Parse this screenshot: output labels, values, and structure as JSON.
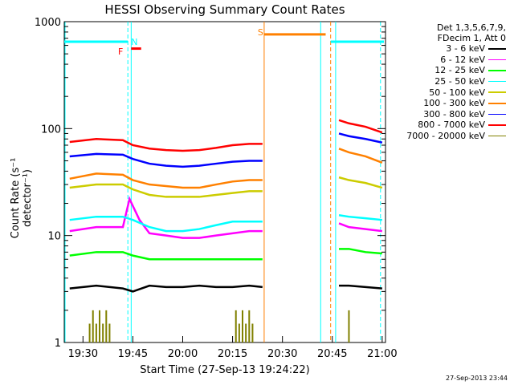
{
  "chart_data": {
    "type": "line",
    "title": "HESSI Observing Summary Count Rates",
    "xlabel": "Start Time (27-Sep-13 19:24:22)",
    "ylabel": "Count Rate (s⁻¹ detector⁻¹)",
    "yscale": "log",
    "ylim": [
      1,
      1000
    ],
    "xlim": [
      "19:24:22",
      "21:01:00"
    ],
    "x_ticks": [
      "19:30",
      "19:45",
      "20:00",
      "20:15",
      "20:30",
      "20:45",
      "21:00"
    ],
    "y_ticks": [
      "1",
      "10",
      "100",
      "1000"
    ],
    "timestamp": "27-Sep-2013 23:44",
    "legend_header": [
      "Det 1,3,5,6,7,9,",
      "FDecim 1, Att 0"
    ],
    "legend_position": "right",
    "series": [
      {
        "name": "3 - 6 keV",
        "color": "#000000",
        "x": [
          "19:26",
          "19:34",
          "19:42",
          "19:45",
          "19:50",
          "19:55",
          "20:00",
          "20:05",
          "20:10",
          "20:15",
          "20:20",
          "20:24",
          "20:47",
          "20:50",
          "20:55",
          "21:00"
        ],
        "y": [
          3.2,
          3.4,
          3.2,
          3.0,
          3.4,
          3.3,
          3.3,
          3.4,
          3.3,
          3.3,
          3.4,
          3.3,
          3.4,
          3.4,
          3.3,
          3.2
        ]
      },
      {
        "name": "6 - 12 keV",
        "color": "#ff00ff",
        "x": [
          "19:26",
          "19:34",
          "19:42",
          "19:44",
          "19:47",
          "19:50",
          "19:55",
          "20:00",
          "20:05",
          "20:10",
          "20:15",
          "20:20",
          "20:24",
          "20:47",
          "20:50",
          "20:55",
          "21:00"
        ],
        "y": [
          11,
          12,
          12,
          22,
          14,
          10.5,
          10,
          9.5,
          9.5,
          10,
          10.5,
          11,
          11,
          13,
          12,
          11.5,
          11
        ]
      },
      {
        "name": "12 - 25 keV",
        "color": "#00ff00",
        "x": [
          "19:26",
          "19:34",
          "19:42",
          "19:45",
          "19:50",
          "19:55",
          "20:00",
          "20:05",
          "20:10",
          "20:15",
          "20:20",
          "20:24",
          "20:47",
          "20:50",
          "20:55",
          "21:00"
        ],
        "y": [
          6.5,
          7,
          7,
          6.5,
          6,
          6,
          6,
          6,
          6,
          6,
          6,
          6,
          7.5,
          7.5,
          7,
          6.8
        ]
      },
      {
        "name": "25 - 50 keV",
        "color": "#00ffff",
        "x": [
          "19:26",
          "19:34",
          "19:42",
          "19:45",
          "19:50",
          "19:55",
          "20:00",
          "20:05",
          "20:10",
          "20:15",
          "20:20",
          "20:24",
          "20:47",
          "20:50",
          "20:55",
          "21:00"
        ],
        "y": [
          14,
          15,
          15,
          14,
          12,
          11,
          11,
          11.5,
          12.5,
          13.5,
          13.5,
          13.5,
          15.5,
          15,
          14.5,
          14
        ]
      },
      {
        "name": "50 - 100 keV",
        "color": "#cccc00",
        "x": [
          "19:26",
          "19:34",
          "19:42",
          "19:45",
          "19:50",
          "19:55",
          "20:00",
          "20:05",
          "20:10",
          "20:15",
          "20:20",
          "20:24",
          "20:47",
          "20:50",
          "20:55",
          "21:00"
        ],
        "y": [
          28,
          30,
          30,
          27,
          24,
          23,
          23,
          23,
          24,
          25,
          26,
          26,
          35,
          33,
          31,
          28
        ]
      },
      {
        "name": "100 - 300 keV",
        "color": "#ff8000",
        "x": [
          "19:26",
          "19:34",
          "19:42",
          "19:45",
          "19:50",
          "19:55",
          "20:00",
          "20:05",
          "20:10",
          "20:15",
          "20:20",
          "20:24",
          "20:47",
          "20:50",
          "20:55",
          "21:00"
        ],
        "y": [
          34,
          38,
          37,
          33,
          30,
          29,
          28,
          28,
          30,
          32,
          33,
          33,
          65,
          60,
          55,
          48
        ]
      },
      {
        "name": "300 - 800 keV",
        "color": "#0000ff",
        "x": [
          "19:26",
          "19:34",
          "19:42",
          "19:45",
          "19:50",
          "19:55",
          "20:00",
          "20:05",
          "20:10",
          "20:15",
          "20:20",
          "20:24",
          "20:47",
          "20:50",
          "20:55",
          "21:00"
        ],
        "y": [
          55,
          58,
          57,
          52,
          47,
          45,
          44,
          45,
          47,
          49,
          50,
          50,
          90,
          85,
          80,
          74
        ]
      },
      {
        "name": "800 - 7000 keV",
        "color": "#ff0000",
        "x": [
          "19:26",
          "19:34",
          "19:42",
          "19:45",
          "19:50",
          "19:55",
          "20:00",
          "20:05",
          "20:10",
          "20:15",
          "20:20",
          "20:24",
          "20:47",
          "20:50",
          "20:55",
          "21:00"
        ],
        "y": [
          75,
          80,
          78,
          70,
          65,
          63,
          62,
          63,
          66,
          70,
          72,
          72,
          120,
          112,
          104,
          92
        ]
      },
      {
        "name": "7000 - 20000 keV",
        "color": "#808000",
        "x": [
          "19:32",
          "19:33",
          "19:34",
          "19:35",
          "19:36",
          "19:37",
          "19:38",
          "20:16",
          "20:17",
          "20:18",
          "20:19",
          "20:20",
          "20:21",
          "20:50"
        ],
        "y": [
          1.5,
          2,
          1.5,
          2,
          1.5,
          2,
          1.5,
          2,
          1.5,
          2,
          1.5,
          2,
          1.5,
          2
        ]
      }
    ],
    "annotations": [
      {
        "label": "N",
        "color": "#00ffff",
        "x": "19:43:30",
        "y": 650
      },
      {
        "label": "F",
        "color": "#ff0000",
        "x": "19:42:30",
        "y": 530
      },
      {
        "label": "S",
        "color": "#ff8000",
        "x": "20:24:30",
        "y": 800
      }
    ]
  }
}
